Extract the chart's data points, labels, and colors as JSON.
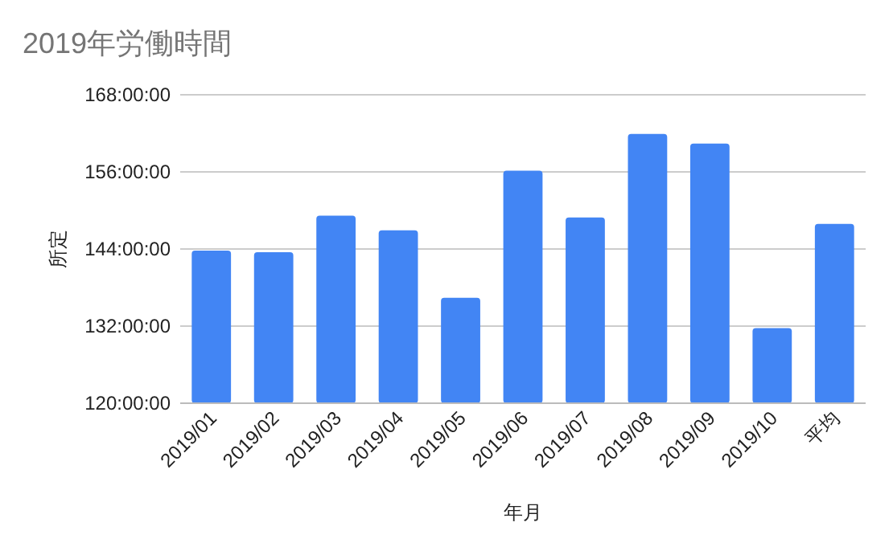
{
  "chart_data": {
    "type": "bar",
    "title": "2019年労働時間",
    "xlabel": "年月",
    "ylabel": "所定",
    "categories": [
      "2019/01",
      "2019/02",
      "2019/03",
      "2019/04",
      "2019/05",
      "2019/06",
      "2019/07",
      "2019/08",
      "2019/09",
      "2019/10",
      "平均"
    ],
    "values": [
      143.75,
      143.5,
      149.2,
      146.9,
      136.4,
      156.2,
      148.9,
      161.9,
      160.4,
      131.7,
      147.9
    ],
    "color": "#4285f4",
    "ylim": [
      120,
      168
    ],
    "yticks": [
      {
        "value": 120,
        "label": "120:00:00"
      },
      {
        "value": 132,
        "label": "132:00:00"
      },
      {
        "value": 144,
        "label": "144:00:00"
      },
      {
        "value": 156,
        "label": "156:00:00"
      },
      {
        "value": 168,
        "label": "168:00:00"
      }
    ],
    "grid": "y"
  }
}
